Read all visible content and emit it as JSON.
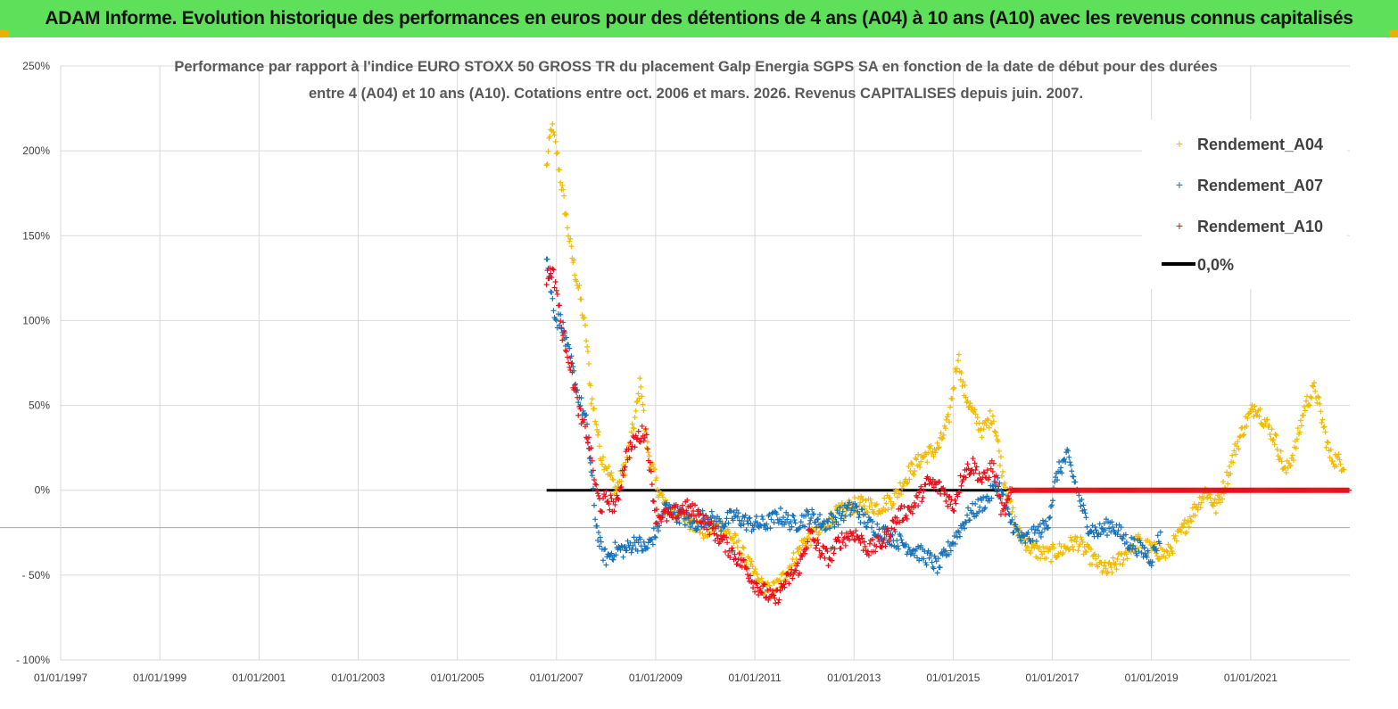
{
  "banner": {
    "title": "ADAM Informe. Evolution historique des performances en euros pour des détentions de 4 ans (A04) à 10 ans (A10) avec les revenus connus capitalisés"
  },
  "chart_data": {
    "type": "scatter",
    "title_line1": "Performance par rapport à l'indice EURO STOXX 50 GROSS TR  du placement Galp Energia SGPS SA en fonction de la date de début pour des durées",
    "title_line2": "entre 4 (A04) et 10 ans (A10). Cotations entre oct. 2006 et mars. 2026. Revenus CAPITALISES depuis juin. 2007.",
    "xlabel": "",
    "ylabel": "",
    "xlim": [
      1997.0,
      2023.0
    ],
    "ylim": [
      -100,
      250
    ],
    "x_ticks": [
      1997,
      1999,
      2001,
      2003,
      2005,
      2007,
      2009,
      2011,
      2013,
      2015,
      2017,
      2019,
      2021
    ],
    "x_tick_labels": [
      "01/01/1997",
      "01/01/1999",
      "01/01/2001",
      "01/01/2003",
      "01/01/2005",
      "01/01/2007",
      "01/01/2009",
      "01/01/2011",
      "01/01/2013",
      "01/01/2015",
      "01/01/2017",
      "01/01/2019",
      "01/01/2021"
    ],
    "y_ticks": [
      -100,
      -50,
      0,
      50,
      100,
      150,
      200,
      250
    ],
    "y_tick_labels": [
      "- 100%",
      "- 50%",
      "0%",
      "50%",
      "100%",
      "150%",
      "200%",
      "250%"
    ],
    "grid": true,
    "legend_position": "top-right",
    "series": [
      {
        "name": "Rendement_A04",
        "marker": "+",
        "color": "#f2bb00",
        "x": [
          2006.8,
          2006.9,
          2007.0,
          2007.1,
          2007.2,
          2007.3,
          2007.4,
          2007.5,
          2007.6,
          2007.7,
          2007.8,
          2007.9,
          2008.0,
          2008.2,
          2008.4,
          2008.6,
          2008.7,
          2008.8,
          2009.0,
          2009.2,
          2009.5,
          2009.8,
          2010.0,
          2010.3,
          2010.6,
          2010.9,
          2011.1,
          2011.3,
          2011.5,
          2011.8,
          2012.0,
          2012.3,
          2012.6,
          2012.9,
          2013.2,
          2013.5,
          2013.8,
          2014.1,
          2014.4,
          2014.7,
          2014.9,
          2015.0,
          2015.1,
          2015.2,
          2015.4,
          2015.6,
          2015.8,
          2016.0,
          2016.3,
          2016.6,
          2016.9,
          2017.2,
          2017.5,
          2017.8,
          2018.1,
          2018.4,
          2018.7,
          2019.0,
          2019.3,
          2019.6,
          2019.9,
          2020.1,
          2020.3,
          2020.5,
          2020.7,
          2020.9,
          2021.1,
          2021.3,
          2021.5,
          2021.7,
          2021.9,
          2022.1,
          2022.3,
          2022.6,
          2022.9
        ],
        "y": [
          190,
          215,
          200,
          180,
          160,
          140,
          125,
          110,
          90,
          55,
          40,
          20,
          15,
          0,
          15,
          45,
          65,
          30,
          5,
          -10,
          -15,
          -20,
          -25,
          -20,
          -30,
          -45,
          -55,
          -60,
          -55,
          -40,
          -30,
          -25,
          -15,
          -10,
          -8,
          -10,
          -5,
          10,
          20,
          25,
          40,
          60,
          80,
          60,
          45,
          35,
          45,
          10,
          -25,
          -35,
          -38,
          -35,
          -30,
          -40,
          -48,
          -40,
          -30,
          -35,
          -38,
          -25,
          -10,
          0,
          -10,
          5,
          25,
          40,
          50,
          40,
          30,
          10,
          25,
          50,
          60,
          20,
          15
        ]
      },
      {
        "name": "Rendement_A07",
        "marker": "+",
        "color": "#1a73b8",
        "x": [
          2006.8,
          2006.9,
          2007.0,
          2007.1,
          2007.2,
          2007.3,
          2007.4,
          2007.5,
          2007.6,
          2007.7,
          2007.8,
          2007.9,
          2008.0,
          2008.2,
          2008.4,
          2008.6,
          2008.8,
          2009.0,
          2009.2,
          2009.5,
          2009.8,
          2010.0,
          2010.3,
          2010.6,
          2010.9,
          2011.2,
          2011.5,
          2011.8,
          2012.1,
          2012.4,
          2012.7,
          2013.0,
          2013.3,
          2013.6,
          2013.9,
          2014.2,
          2014.5,
          2014.7,
          2014.9,
          2015.1,
          2015.3,
          2015.5,
          2015.7,
          2015.9,
          2016.1,
          2016.4,
          2016.7,
          2016.9,
          2017.1,
          2017.3,
          2017.5,
          2017.7,
          2017.9,
          2018.2,
          2018.5,
          2018.8,
          2019.0,
          2019.2
        ],
        "y": [
          140,
          115,
          100,
          100,
          85,
          75,
          60,
          50,
          40,
          10,
          -20,
          -35,
          -40,
          -35,
          -35,
          -30,
          -35,
          -25,
          -10,
          -15,
          -20,
          -15,
          -20,
          -15,
          -20,
          -20,
          -15,
          -20,
          -15,
          -20,
          -15,
          -10,
          -20,
          -25,
          -30,
          -35,
          -40,
          -45,
          -35,
          -25,
          -15,
          -10,
          -5,
          5,
          -15,
          -30,
          -25,
          -20,
          10,
          20,
          0,
          -20,
          -25,
          -20,
          -30,
          -35,
          -40,
          -25
        ]
      },
      {
        "name": "Rendement_A10",
        "marker": "+",
        "color": "#e8101c",
        "x": [
          2006.8,
          2006.9,
          2007.0,
          2007.1,
          2007.2,
          2007.3,
          2007.4,
          2007.5,
          2007.6,
          2007.7,
          2007.8,
          2007.9,
          2008.0,
          2008.2,
          2008.4,
          2008.6,
          2008.8,
          2009.0,
          2009.3,
          2009.6,
          2009.9,
          2010.2,
          2010.5,
          2010.8,
          2011.0,
          2011.2,
          2011.4,
          2011.6,
          2011.9,
          2012.1,
          2012.3,
          2012.5,
          2012.7,
          2013.0,
          2013.3,
          2013.6,
          2013.9,
          2014.2,
          2014.5,
          2014.8,
          2015.0,
          2015.2,
          2015.4,
          2015.6,
          2015.8,
          2016.0,
          2016.2,
          2016.6,
          2017.0,
          2017.5,
          2018.0,
          2018.5,
          2019.0,
          2019.5,
          2020.0,
          2020.5,
          2021.0,
          2021.5,
          2022.0,
          2022.5,
          2023.0
        ],
        "y": [
          125,
          130,
          120,
          95,
          85,
          70,
          55,
          40,
          35,
          20,
          0,
          -10,
          -5,
          -10,
          20,
          30,
          35,
          -15,
          -15,
          -10,
          -15,
          -25,
          -35,
          -45,
          -55,
          -60,
          -65,
          -55,
          -45,
          -25,
          -35,
          -40,
          -30,
          -25,
          -35,
          -30,
          -15,
          -10,
          5,
          0,
          -10,
          10,
          15,
          5,
          15,
          -15,
          0,
          0,
          0,
          0,
          0,
          0,
          0,
          0,
          0,
          0,
          0,
          0,
          0,
          0,
          0
        ]
      },
      {
        "name": "0,0%",
        "type": "line",
        "color": "#000000",
        "x": [
          2006.8,
          2016.2
        ],
        "y": [
          0,
          0
        ]
      }
    ]
  }
}
